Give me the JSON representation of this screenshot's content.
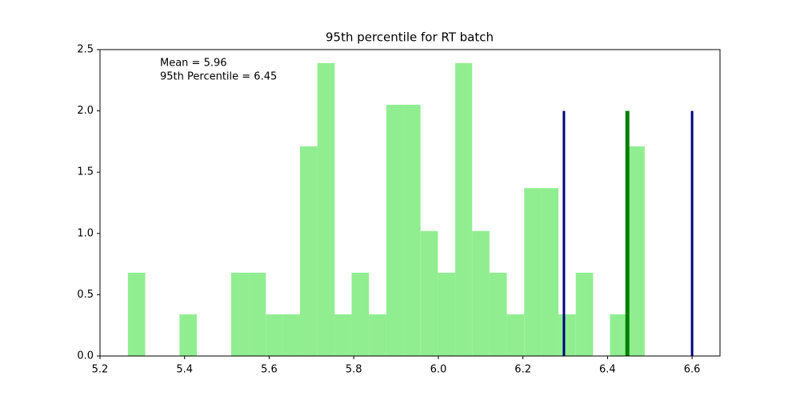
{
  "chart_data": {
    "type": "histogram",
    "title": "95th percentile for RT batch",
    "bins": [
      5.266,
      5.307,
      5.347,
      5.388,
      5.429,
      5.47,
      5.51,
      5.551,
      5.592,
      5.633,
      5.673,
      5.714,
      5.755,
      5.795,
      5.836,
      5.877,
      5.918,
      5.958,
      5.999,
      6.04,
      6.08,
      6.121,
      6.162,
      6.203,
      6.243,
      6.284,
      6.325,
      6.366,
      6.406,
      6.447,
      6.488
    ],
    "values": [
      0.68,
      0,
      0,
      0.34,
      0,
      0,
      0.68,
      0.68,
      0.34,
      0.34,
      1.71,
      2.39,
      0.34,
      0.68,
      0.34,
      2.05,
      2.05,
      1.02,
      0.68,
      2.39,
      1.02,
      0.68,
      0.34,
      1.37,
      1.37,
      0.34,
      0.68,
      0,
      0.34,
      1.71
    ],
    "color": "#90ee90",
    "vlines": [
      {
        "x": 6.297,
        "ymax": 2.0,
        "color": "#000080"
      },
      {
        "x": 6.6,
        "ymax": 2.0,
        "color": "#000080"
      },
      {
        "x": 6.447,
        "ymax": 2.0,
        "color": "#008000"
      }
    ],
    "annotations": [
      "Mean = 5.96",
      "95th Percentile = 6.45"
    ],
    "xlim": [
      5.2,
      6.666
    ],
    "ylim": [
      0,
      2.5
    ],
    "xticks": [
      5.2,
      5.4,
      5.6,
      5.8,
      {
        "value": 6,
        "label": "6.0"
      },
      6.2,
      6.4,
      6.6
    ],
    "yticks": [
      {
        "value": 0,
        "label": "0.0"
      },
      0.5,
      {
        "value": 1,
        "label": "1.0"
      },
      1.5,
      {
        "value": 2,
        "label": "2.0"
      },
      2.5
    ],
    "grid": false
  }
}
